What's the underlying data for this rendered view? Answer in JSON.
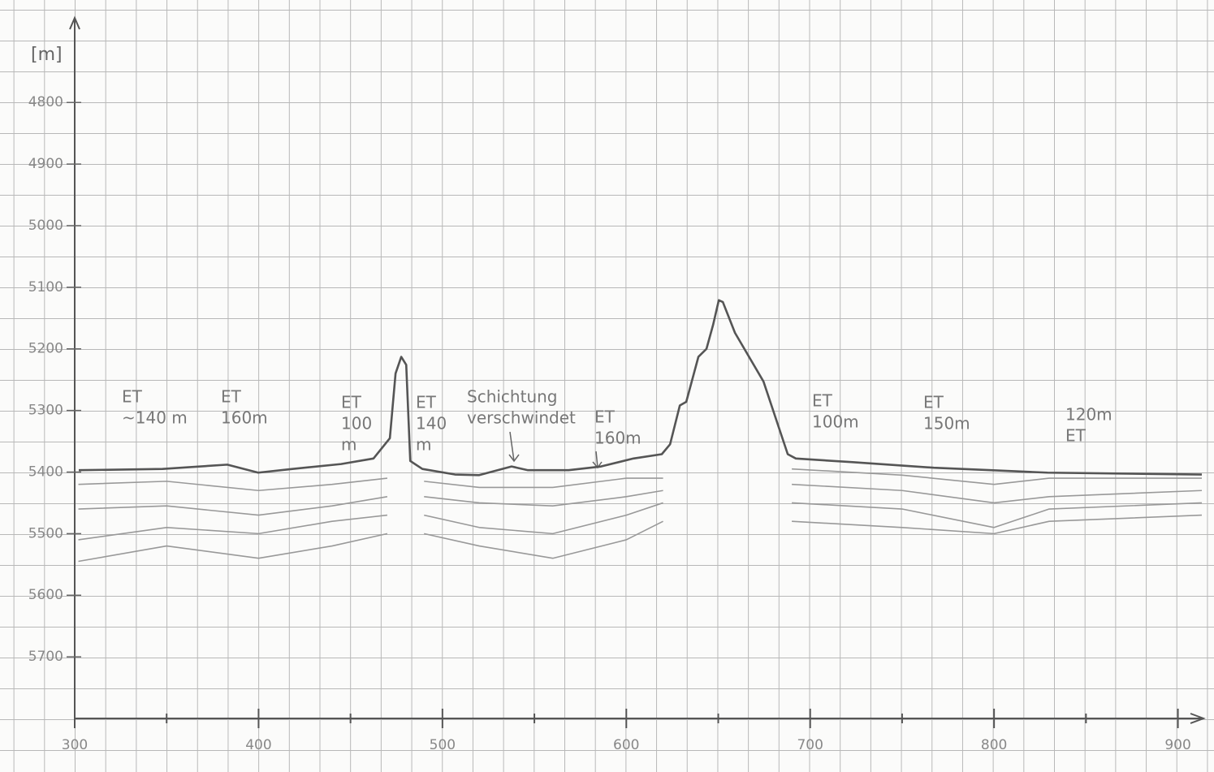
{
  "chart_data": {
    "type": "line",
    "y_label": "[m]",
    "x": [
      302.2,
      347.7,
      383.0,
      399.8,
      418.4,
      444.9,
      462.5,
      471.4,
      474.5,
      477.6,
      480.3,
      482.5,
      489.1,
      506.8,
      520.0,
      537.6,
      546.5,
      568.6,
      586.2,
      603.9,
      619.3,
      623.8,
      629.1,
      632.6,
      639.2,
      643.6,
      647.2,
      650.3,
      652.5,
      659.1,
      674.6,
      687.8,
      692.2,
      723.1,
      767.3,
      798.2,
      829.1,
      913.0
    ],
    "values": [
      5397,
      5395,
      5388,
      5401,
      5395,
      5387,
      5378,
      5345,
      5240,
      5213,
      5226,
      5382,
      5395,
      5404,
      5405,
      5391,
      5397,
      5397,
      5391,
      5378,
      5371,
      5355,
      5292,
      5286,
      5213,
      5200,
      5161,
      5121,
      5124,
      5174,
      5253,
      5371,
      5378,
      5384,
      5393,
      5397,
      5401,
      5404
    ],
    "color": "#555555",
    "reflectors": [
      {
        "x": [
          302,
          350,
          400,
          440,
          470
        ],
        "values": [
          5420,
          5415,
          5430,
          5420,
          5410
        ]
      },
      {
        "x": [
          302,
          350,
          400,
          440,
          470
        ],
        "values": [
          5460,
          5455,
          5470,
          5455,
          5440
        ]
      },
      {
        "x": [
          302,
          350,
          400,
          440,
          470
        ],
        "values": [
          5510,
          5490,
          5500,
          5480,
          5470
        ]
      },
      {
        "x": [
          302,
          350,
          400,
          440,
          470
        ],
        "values": [
          5545,
          5520,
          5540,
          5520,
          5500
        ]
      },
      {
        "x": [
          490,
          520,
          560,
          600,
          620
        ],
        "values": [
          5415,
          5425,
          5425,
          5410,
          5410
        ]
      },
      {
        "x": [
          490,
          520,
          560,
          600,
          620
        ],
        "values": [
          5440,
          5450,
          5455,
          5440,
          5430
        ]
      },
      {
        "x": [
          490,
          520,
          560,
          600,
          620
        ],
        "values": [
          5470,
          5490,
          5500,
          5470,
          5450
        ]
      },
      {
        "x": [
          490,
          520,
          560,
          600,
          620
        ],
        "values": [
          5500,
          5520,
          5540,
          5510,
          5480
        ]
      },
      {
        "x": [
          690,
          750,
          800,
          830,
          913
        ],
        "values": [
          5395,
          5405,
          5420,
          5410,
          5410
        ]
      },
      {
        "x": [
          690,
          750,
          800,
          830,
          913
        ],
        "values": [
          5420,
          5430,
          5450,
          5440,
          5430
        ]
      },
      {
        "x": [
          690,
          750,
          800,
          830,
          913
        ],
        "values": [
          5450,
          5460,
          5490,
          5460,
          5450
        ]
      },
      {
        "x": [
          690,
          750,
          800,
          830,
          913
        ],
        "values": [
          5480,
          5490,
          5500,
          5480,
          5470
        ]
      }
    ],
    "reflector_color": "#999999",
    "xlim": [
      300,
      913
    ],
    "xticks": [
      300,
      400,
      500,
      600,
      700,
      800,
      900
    ],
    "xminor": [
      350,
      450,
      550,
      650,
      750,
      850
    ],
    "ylim": [
      5800,
      4660
    ],
    "yticks": [
      4800,
      4900,
      5000,
      5100,
      5200,
      5300,
      5400,
      5500,
      5600,
      5700
    ],
    "annotations": [
      {
        "lines": [
          "ET",
          "~140 m"
        ]
      },
      {
        "lines": [
          "ET",
          "160m"
        ]
      },
      {
        "lines": [
          "ET",
          "100",
          "m"
        ]
      },
      {
        "lines": [
          "ET",
          "140",
          "m"
        ]
      },
      {
        "lines": [
          "Schichtung",
          "verschwindet"
        ]
      },
      {
        "lines": [
          "ET",
          "160m"
        ]
      },
      {
        "lines": [
          "ET",
          "100m"
        ]
      },
      {
        "lines": [
          "ET",
          "150m"
        ]
      },
      {
        "lines": [
          "120m",
          "ET"
        ]
      }
    ]
  }
}
